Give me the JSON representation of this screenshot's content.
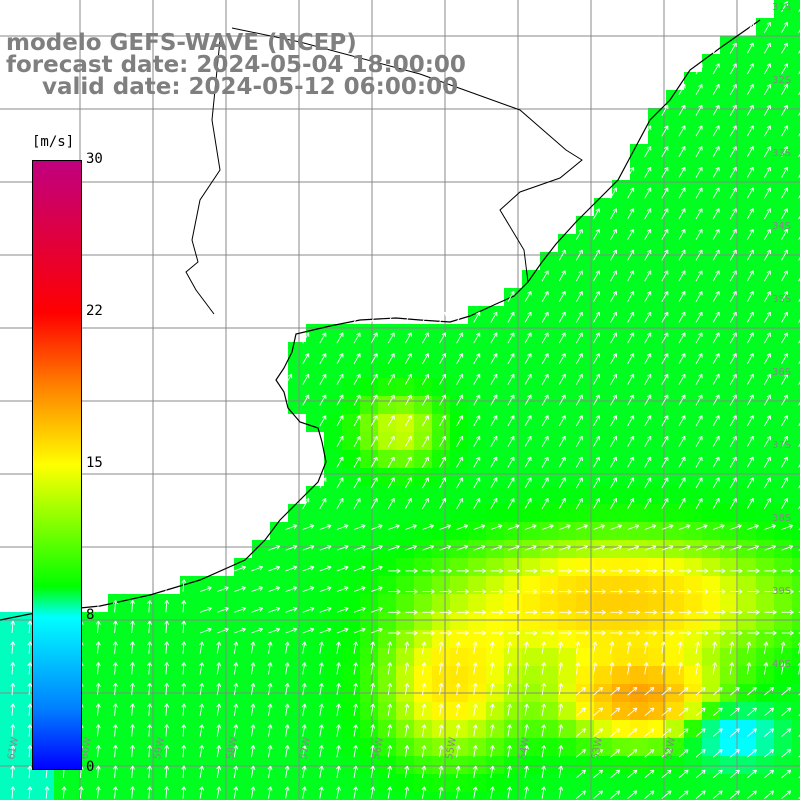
{
  "title": {
    "line1": "modelo GEFS-WAVE (NCEP)",
    "line2": "forecast date: 2024-05-04 18:00:00",
    "line3": "valid date: 2024-05-12 06:00:00"
  },
  "colorbar": {
    "unit": "[m/s]",
    "ticks": [
      "30",
      "22",
      "15",
      "8",
      "0"
    ],
    "colors": [
      "#c0007f",
      "#ff0000",
      "#ff8000",
      "#ffff00",
      "#00ff00",
      "#00ffff",
      "#0080ff",
      "#0000ff"
    ]
  },
  "map": {
    "lat_labels": [
      "31S",
      "32S",
      "33S",
      "34S",
      "35S",
      "36S",
      "37S",
      "38S",
      "39S",
      "40S"
    ],
    "lon_labels": [
      "61W",
      "60W",
      "59W",
      "58W",
      "57W",
      "56W",
      "55W",
      "54W",
      "53W",
      "52W"
    ],
    "colors": {
      "land": "#ffffff",
      "coast": "#000000",
      "grid": "#888888",
      "arrow": "#ffffff"
    }
  }
}
